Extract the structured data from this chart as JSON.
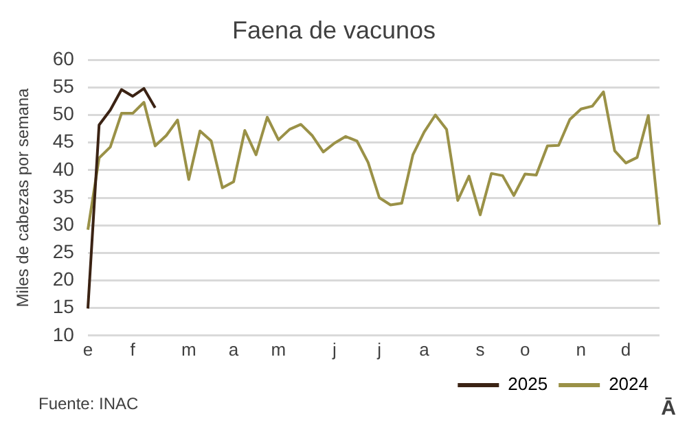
{
  "chart_data": {
    "type": "line",
    "title": "Faena de vacunos",
    "ylabel": "Miles de cabezas por semana",
    "categories": [
      "e",
      null,
      null,
      null,
      "f",
      null,
      null,
      null,
      null,
      "m",
      null,
      null,
      null,
      "a",
      null,
      null,
      null,
      "m",
      null,
      null,
      null,
      null,
      "j",
      null,
      null,
      null,
      "j",
      null,
      null,
      null,
      "a",
      null,
      null,
      null,
      null,
      "s",
      null,
      null,
      null,
      "o",
      null,
      null,
      null,
      null,
      "n",
      null,
      null,
      null,
      "d",
      null,
      null,
      null
    ],
    "ylim": [
      10,
      60
    ],
    "yticks": [
      10,
      15,
      20,
      25,
      30,
      35,
      40,
      45,
      50,
      55,
      60
    ],
    "grid": "y",
    "legend": "bottom right",
    "marker": "none",
    "series": [
      {
        "name": "2025",
        "color": "#3b2314",
        "values": [
          14.9,
          48.2,
          50.9,
          54.6,
          53.4,
          54.8,
          51.3,
          null,
          null,
          null,
          null,
          null,
          null,
          null,
          null,
          null,
          null,
          null,
          null,
          null,
          null,
          null,
          null,
          null,
          null,
          null,
          null,
          null,
          null,
          null,
          null,
          null,
          null,
          null,
          null,
          null,
          null,
          null,
          null,
          null,
          null,
          null,
          null,
          null,
          null,
          null,
          null,
          null,
          null,
          null,
          null,
          null
        ]
      },
      {
        "name": "2024",
        "color": "#9a9147",
        "values": [
          29.2,
          42.2,
          44.2,
          50.3,
          50.3,
          52.3,
          44.4,
          46.3,
          49.1,
          38.3,
          47.1,
          45.3,
          36.8,
          37.9,
          47.2,
          42.8,
          49.6,
          45.5,
          47.4,
          48.3,
          46.3,
          43.3,
          44.9,
          46.1,
          45.3,
          41.4,
          35.0,
          33.7,
          34.0,
          42.8,
          46.9,
          50.0,
          47.4,
          34.5,
          38.9,
          31.9,
          39.4,
          39.0,
          35.4,
          39.3,
          39.1,
          44.4,
          44.5,
          49.2,
          51.1,
          51.6,
          54.2,
          43.5,
          41.3,
          42.3,
          49.9,
          30.1
        ]
      }
    ],
    "annotations": [
      "Fuente: INAC",
      "Ā"
    ]
  }
}
